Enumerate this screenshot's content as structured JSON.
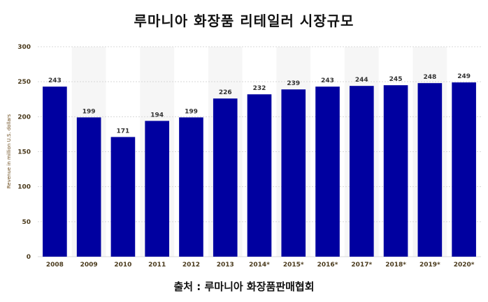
{
  "header": {
    "title": "루마니아 화장품 리테일러 시장규모"
  },
  "footer": {
    "source": "출처 : 루마니아 화장품판매협회"
  },
  "chart_data": {
    "type": "bar",
    "title": "루마니아 화장품 리테일러 시장규모",
    "ylabel": "Revenue in million U.S. dollars",
    "xlabel": "",
    "categories": [
      "2008",
      "2009",
      "2010",
      "2011",
      "2012",
      "2013",
      "2014*",
      "2015*",
      "2016*",
      "2017*",
      "2018*",
      "2019*",
      "2020*"
    ],
    "values": [
      243,
      199,
      171,
      194,
      199,
      226,
      232,
      239,
      243,
      244,
      245,
      248,
      249
    ],
    "ylim": [
      0,
      300
    ],
    "yticks": [
      0,
      50,
      100,
      150,
      200,
      250,
      300
    ],
    "grid": true,
    "bar_color": "#0000a0",
    "band_color": "#f6f6f6"
  }
}
